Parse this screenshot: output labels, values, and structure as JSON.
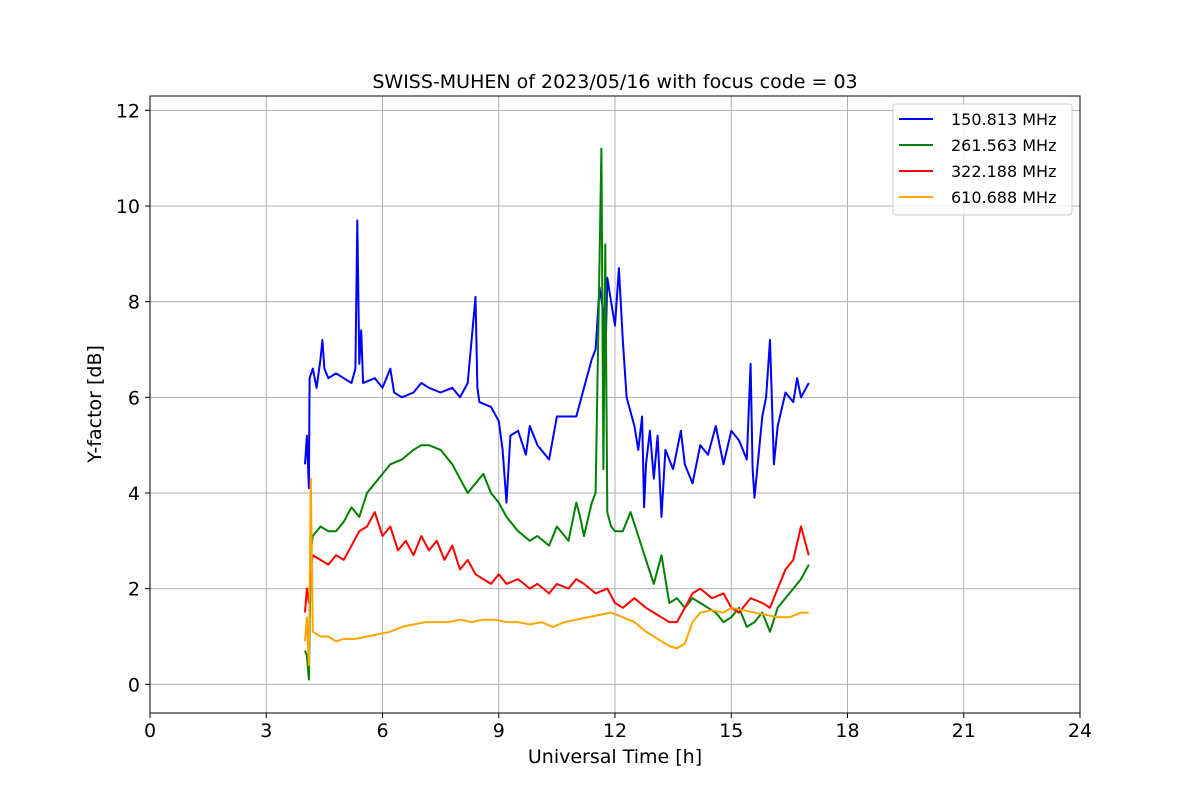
{
  "chart_data": {
    "type": "line",
    "title": "SWISS-MUHEN of 2023/05/16 with focus code = 03",
    "xlabel": "Universal Time [h]",
    "ylabel": "Y-factor [dB]",
    "xlim": [
      0,
      24
    ],
    "ylim": [
      -0.6,
      12.3
    ],
    "xticks": [
      0,
      3,
      6,
      9,
      12,
      15,
      18,
      21,
      24
    ],
    "yticks": [
      0,
      2,
      4,
      6,
      8,
      10,
      12
    ],
    "grid": true,
    "legend_position": "top-right",
    "series": [
      {
        "name": "150.813 MHz",
        "color": "#0000ff",
        "x": [
          4.0,
          4.05,
          4.1,
          4.12,
          4.2,
          4.3,
          4.4,
          4.45,
          4.5,
          4.6,
          4.8,
          5.0,
          5.2,
          5.3,
          5.35,
          5.4,
          5.45,
          5.5,
          5.8,
          6.0,
          6.2,
          6.3,
          6.5,
          6.8,
          7.0,
          7.2,
          7.5,
          7.8,
          8.0,
          8.2,
          8.4,
          8.45,
          8.5,
          8.8,
          9.0,
          9.1,
          9.2,
          9.3,
          9.5,
          9.7,
          9.8,
          10.0,
          10.3,
          10.5,
          10.8,
          11.0,
          11.2,
          11.4,
          11.5,
          11.6,
          11.7,
          11.75,
          11.8,
          11.9,
          12.0,
          12.1,
          12.2,
          12.3,
          12.5,
          12.6,
          12.7,
          12.75,
          12.8,
          12.9,
          13.0,
          13.1,
          13.2,
          13.3,
          13.5,
          13.7,
          13.8,
          14.0,
          14.2,
          14.4,
          14.6,
          14.8,
          15.0,
          15.2,
          15.4,
          15.5,
          15.55,
          15.6,
          15.8,
          15.9,
          16.0,
          16.1,
          16.2,
          16.4,
          16.6,
          16.7,
          16.8,
          17.0
        ],
        "y": [
          4.6,
          5.2,
          4.1,
          6.4,
          6.6,
          6.2,
          6.8,
          7.2,
          6.6,
          6.4,
          6.5,
          6.4,
          6.3,
          6.6,
          9.7,
          6.7,
          7.4,
          6.3,
          6.4,
          6.2,
          6.6,
          6.1,
          6.0,
          6.1,
          6.3,
          6.2,
          6.1,
          6.2,
          6.0,
          6.3,
          8.1,
          6.2,
          5.9,
          5.8,
          5.5,
          4.9,
          3.8,
          5.2,
          5.3,
          4.8,
          5.4,
          5.0,
          4.7,
          5.6,
          5.6,
          5.6,
          6.2,
          6.8,
          7.0,
          8.3,
          7.8,
          6.7,
          8.5,
          8.0,
          7.5,
          8.7,
          7.2,
          6.0,
          5.4,
          4.9,
          5.6,
          3.7,
          4.6,
          5.3,
          4.3,
          5.2,
          3.5,
          4.9,
          4.5,
          5.3,
          4.6,
          4.2,
          5.0,
          4.8,
          5.4,
          4.6,
          5.3,
          5.1,
          4.7,
          6.7,
          4.5,
          3.9,
          5.6,
          6.0,
          7.2,
          4.6,
          5.4,
          6.1,
          5.9,
          6.4,
          6.0,
          6.3
        ]
      },
      {
        "name": "261.563 MHz",
        "color": "#008000",
        "x": [
          4.0,
          4.05,
          4.1,
          4.15,
          4.2,
          4.4,
          4.6,
          4.8,
          5.0,
          5.2,
          5.4,
          5.6,
          5.8,
          6.0,
          6.2,
          6.5,
          6.8,
          7.0,
          7.2,
          7.5,
          7.8,
          8.0,
          8.2,
          8.4,
          8.6,
          8.8,
          9.0,
          9.2,
          9.5,
          9.8,
          10.0,
          10.3,
          10.5,
          10.8,
          11.0,
          11.1,
          11.2,
          11.4,
          11.5,
          11.6,
          11.65,
          11.7,
          11.75,
          11.8,
          11.9,
          12.0,
          12.2,
          12.4,
          12.6,
          12.8,
          13.0,
          13.2,
          13.4,
          13.6,
          13.8,
          14.0,
          14.2,
          14.4,
          14.6,
          14.8,
          15.0,
          15.2,
          15.4,
          15.6,
          15.8,
          16.0,
          16.2,
          16.5,
          16.8,
          17.0
        ],
        "y": [
          0.7,
          0.6,
          0.1,
          2.8,
          3.1,
          3.3,
          3.2,
          3.2,
          3.4,
          3.7,
          3.5,
          4.0,
          4.2,
          4.4,
          4.6,
          4.7,
          4.9,
          5.0,
          5.0,
          4.9,
          4.6,
          4.3,
          4.0,
          4.2,
          4.4,
          4.0,
          3.8,
          3.5,
          3.2,
          3.0,
          3.1,
          2.9,
          3.3,
          3.0,
          3.8,
          3.5,
          3.1,
          3.8,
          4.0,
          8.8,
          11.2,
          4.5,
          9.2,
          3.6,
          3.3,
          3.2,
          3.2,
          3.6,
          3.1,
          2.6,
          2.1,
          2.7,
          1.7,
          1.8,
          1.6,
          1.8,
          1.7,
          1.6,
          1.5,
          1.3,
          1.4,
          1.6,
          1.2,
          1.3,
          1.5,
          1.1,
          1.6,
          1.9,
          2.2,
          2.5
        ]
      },
      {
        "name": "322.188 MHz",
        "color": "#ff0000",
        "x": [
          4.0,
          4.05,
          4.1,
          4.15,
          4.2,
          4.4,
          4.6,
          4.8,
          5.0,
          5.2,
          5.4,
          5.6,
          5.8,
          6.0,
          6.2,
          6.4,
          6.6,
          6.8,
          7.0,
          7.2,
          7.4,
          7.6,
          7.8,
          8.0,
          8.2,
          8.4,
          8.6,
          8.8,
          9.0,
          9.2,
          9.5,
          9.8,
          10.0,
          10.3,
          10.5,
          10.8,
          11.0,
          11.2,
          11.5,
          11.8,
          12.0,
          12.2,
          12.5,
          12.8,
          13.0,
          13.2,
          13.4,
          13.6,
          13.8,
          14.0,
          14.2,
          14.5,
          14.8,
          15.0,
          15.2,
          15.5,
          15.8,
          16.0,
          16.2,
          16.4,
          16.6,
          16.8,
          17.0
        ],
        "y": [
          1.5,
          2.0,
          1.7,
          2.4,
          2.7,
          2.6,
          2.5,
          2.7,
          2.6,
          2.9,
          3.2,
          3.3,
          3.6,
          3.1,
          3.3,
          2.8,
          3.0,
          2.7,
          3.1,
          2.8,
          3.0,
          2.6,
          2.9,
          2.4,
          2.6,
          2.3,
          2.2,
          2.1,
          2.3,
          2.1,
          2.2,
          2.0,
          2.1,
          1.9,
          2.1,
          2.0,
          2.2,
          2.1,
          1.9,
          2.0,
          1.7,
          1.6,
          1.8,
          1.6,
          1.5,
          1.4,
          1.3,
          1.3,
          1.6,
          1.9,
          2.0,
          1.8,
          1.9,
          1.6,
          1.5,
          1.8,
          1.7,
          1.6,
          2.0,
          2.4,
          2.6,
          3.3,
          2.7
        ]
      },
      {
        "name": "610.688 MHz",
        "color": "#ffa500",
        "x": [
          4.0,
          4.05,
          4.1,
          4.15,
          4.2,
          4.4,
          4.6,
          4.8,
          5.0,
          5.3,
          5.6,
          5.9,
          6.2,
          6.5,
          6.8,
          7.1,
          7.4,
          7.7,
          8.0,
          8.3,
          8.6,
          8.9,
          9.2,
          9.5,
          9.8,
          10.1,
          10.4,
          10.7,
          11.0,
          11.3,
          11.6,
          11.9,
          12.2,
          12.5,
          12.8,
          13.0,
          13.2,
          13.4,
          13.6,
          13.8,
          14.0,
          14.2,
          14.5,
          14.8,
          15.0,
          15.3,
          15.6,
          15.9,
          16.2,
          16.5,
          16.8,
          17.0
        ],
        "y": [
          0.9,
          1.4,
          0.4,
          4.3,
          1.1,
          1.0,
          1.0,
          0.9,
          0.95,
          0.95,
          1.0,
          1.05,
          1.1,
          1.2,
          1.25,
          1.3,
          1.3,
          1.3,
          1.35,
          1.3,
          1.35,
          1.35,
          1.3,
          1.3,
          1.25,
          1.3,
          1.2,
          1.3,
          1.35,
          1.4,
          1.45,
          1.5,
          1.4,
          1.3,
          1.1,
          1.0,
          0.9,
          0.8,
          0.75,
          0.85,
          1.3,
          1.5,
          1.55,
          1.5,
          1.6,
          1.55,
          1.5,
          1.45,
          1.4,
          1.4,
          1.5,
          1.5
        ]
      }
    ]
  }
}
